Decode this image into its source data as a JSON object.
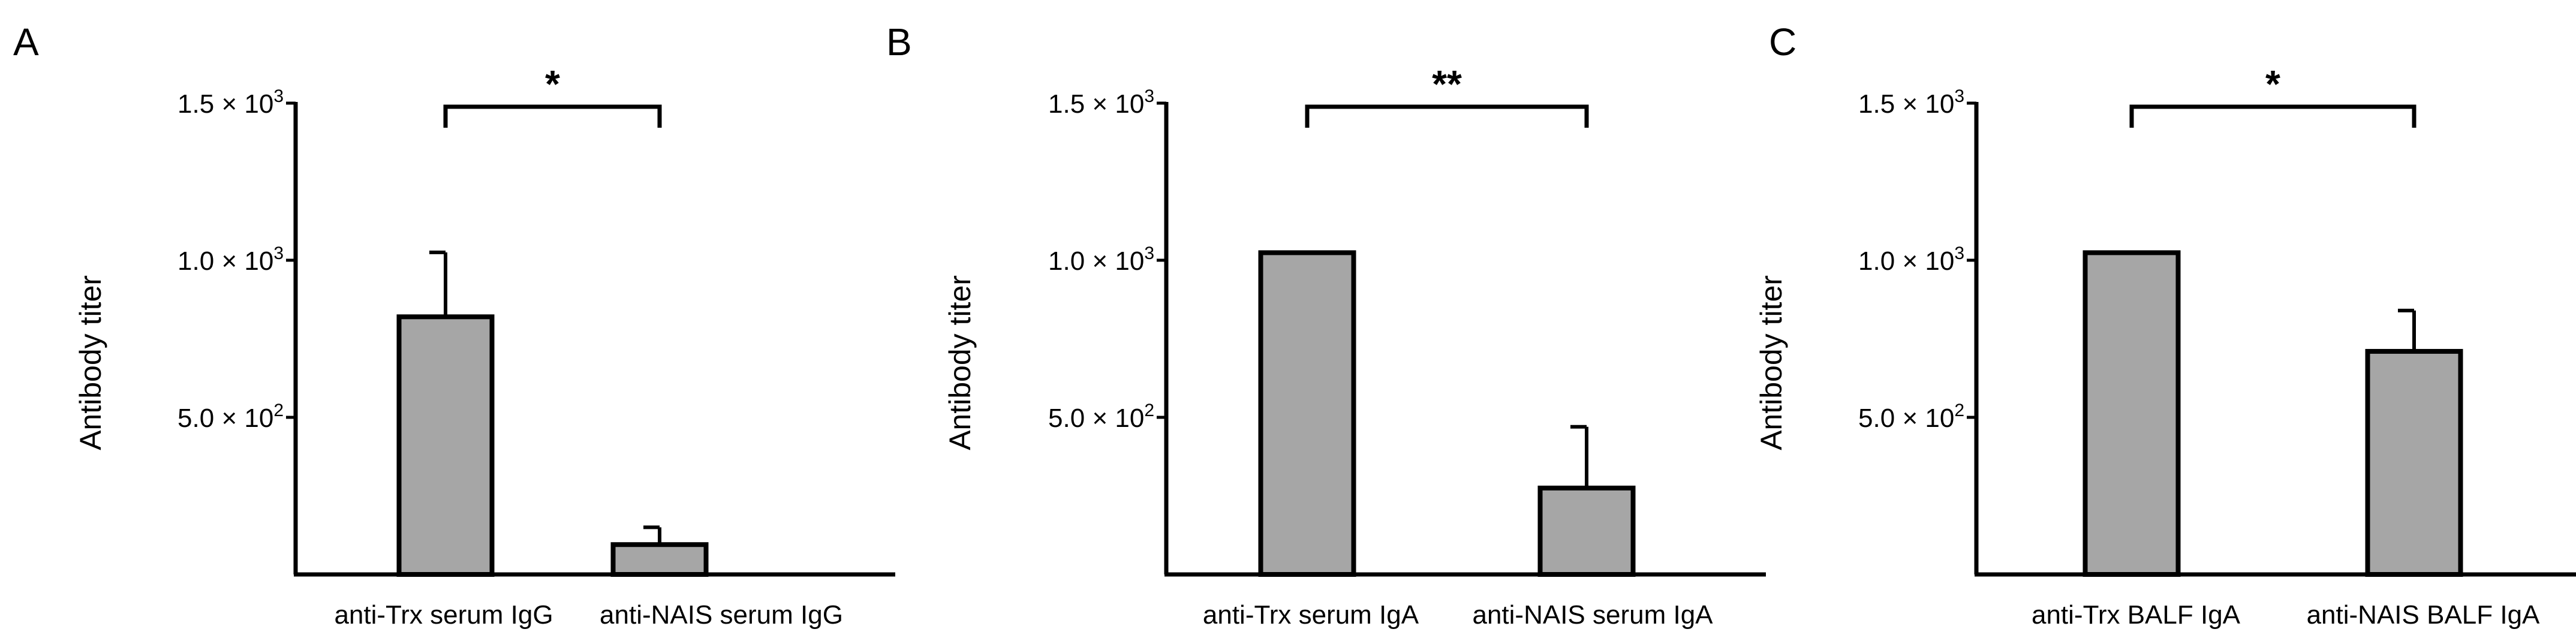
{
  "chart_data": [
    {
      "type": "bar",
      "panel": "A",
      "ylabel": "Antibody titer",
      "categories": [
        "anti-Trx serum IgG",
        "anti-NAIS serum IgG"
      ],
      "values": [
        820,
        95
      ],
      "error_plus": [
        205,
        55
      ],
      "ylim": [
        0,
        1500
      ],
      "yticks": [
        {
          "value": 500,
          "mantissa": "5.0",
          "exp": "2"
        },
        {
          "value": 1000,
          "mantissa": "1.0",
          "exp": "3"
        },
        {
          "value": 1500,
          "mantissa": "1.5",
          "exp": "3"
        }
      ],
      "significance": "*",
      "bar_color": "#a6a6a6"
    },
    {
      "type": "bar",
      "panel": "B",
      "ylabel": "Antibody titer",
      "categories": [
        "anti-Trx serum IgA",
        "anti-NAIS serum IgA"
      ],
      "values": [
        1024,
        275
      ],
      "error_plus": [
        0,
        195
      ],
      "ylim": [
        0,
        1500
      ],
      "yticks": [
        {
          "value": 500,
          "mantissa": "5.0",
          "exp": "2"
        },
        {
          "value": 1000,
          "mantissa": "1.0",
          "exp": "3"
        },
        {
          "value": 1500,
          "mantissa": "1.5",
          "exp": "3"
        }
      ],
      "significance": "**",
      "bar_color": "#a6a6a6"
    },
    {
      "type": "bar",
      "panel": "C",
      "ylabel": "Antibody titer",
      "categories": [
        "anti-Trx BALF IgA",
        "anti-NAIS BALF IgA"
      ],
      "values": [
        1024,
        710
      ],
      "error_plus": [
        0,
        130
      ],
      "ylim": [
        0,
        1500
      ],
      "yticks": [
        {
          "value": 500,
          "mantissa": "5.0",
          "exp": "2"
        },
        {
          "value": 1000,
          "mantissa": "1.0",
          "exp": "3"
        },
        {
          "value": 1500,
          "mantissa": "1.5",
          "exp": "3"
        }
      ],
      "significance": "*",
      "bar_color": "#a6a6a6"
    }
  ]
}
